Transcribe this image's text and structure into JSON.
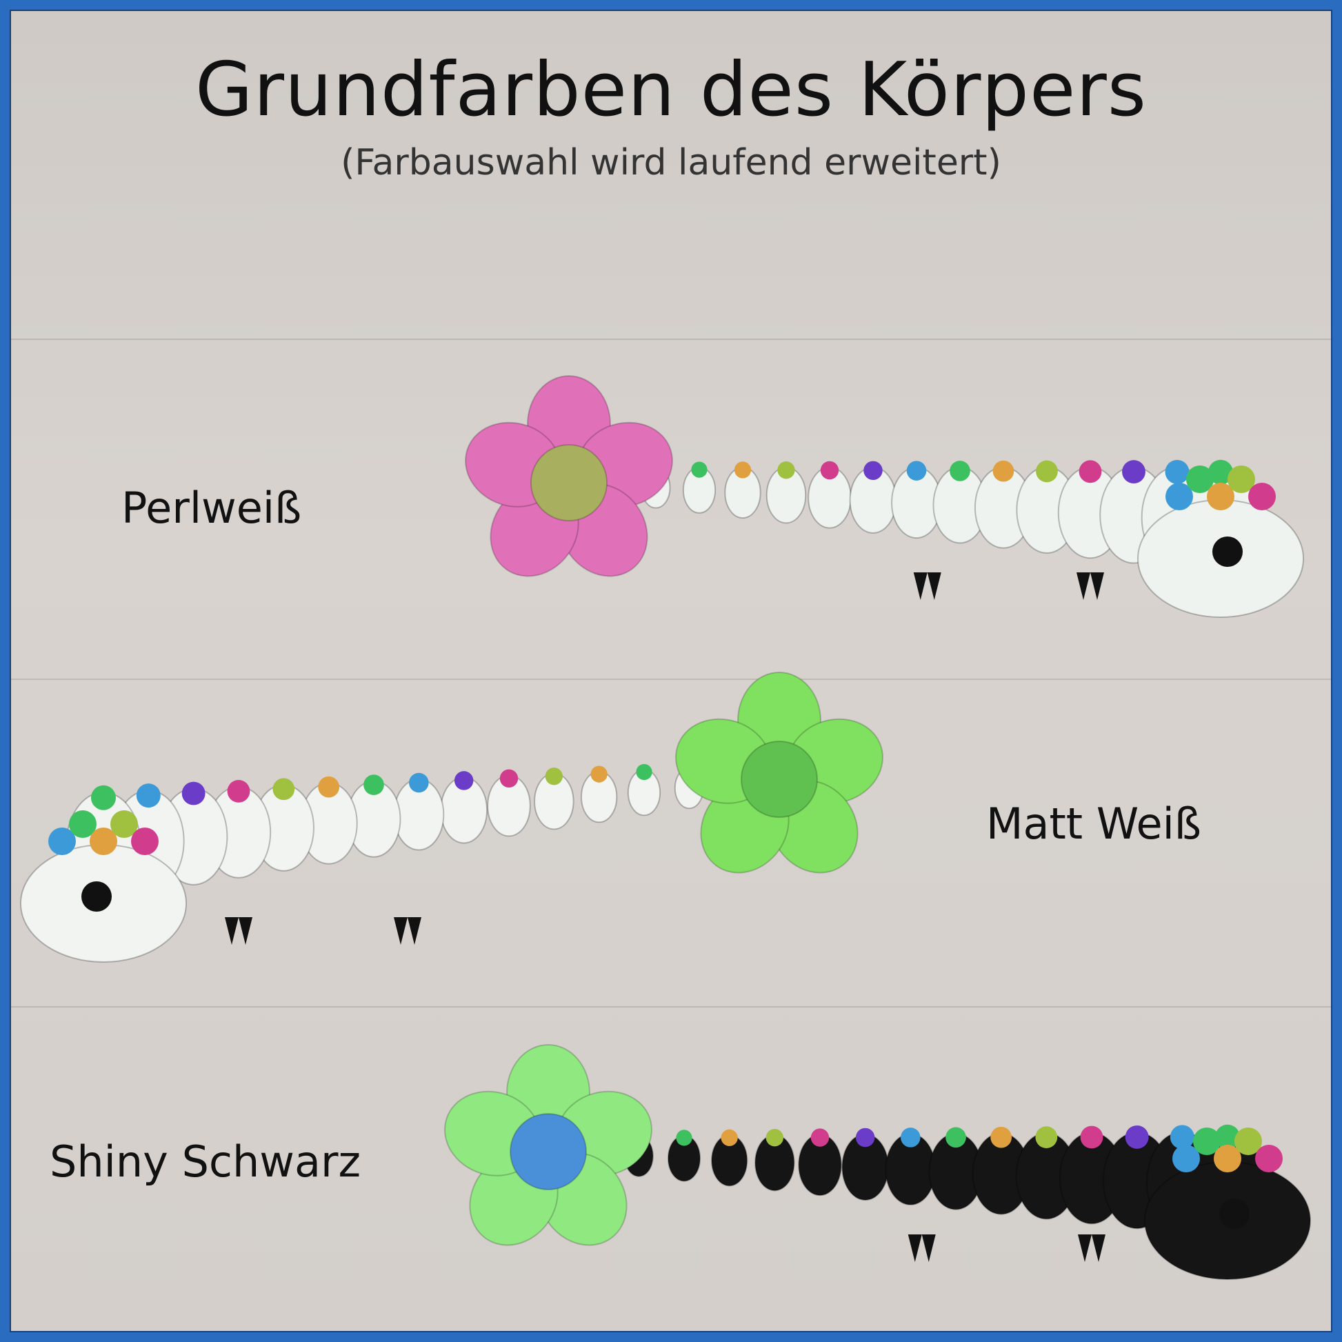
{
  "header": {
    "title": "Grundfarben des Körpers",
    "subtitle": "(Farbauswahl wird laufend erweitert)"
  },
  "variants": [
    {
      "label": "Perlweiß",
      "body_color": "#eef3f0",
      "flower_color": "#e070b8",
      "flower_center": "#a8b060"
    },
    {
      "label": "Matt Weiß",
      "body_color": "#f2f4f2",
      "flower_color": "#80e060",
      "flower_center": "#60c050"
    },
    {
      "label": "Shiny Schwarz",
      "body_color": "#151515",
      "flower_color": "#90e880",
      "flower_center": "#4a90d8"
    }
  ],
  "colors": {
    "border": "#2a6cc0",
    "background": "#d4cfcb"
  }
}
